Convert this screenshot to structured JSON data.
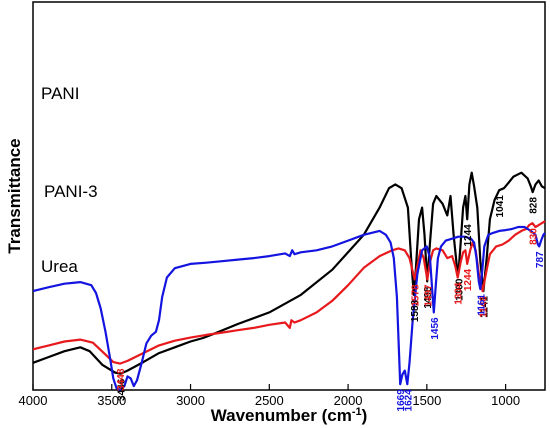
{
  "chart_data": {
    "type": "line",
    "xlabel": "Wavenumber (cm",
    "xlabel_sup": "-1",
    "xlabel_end": ")",
    "ylabel": "Transmittance",
    "xlim": [
      4000,
      750
    ],
    "x_reversed": true,
    "xticks": [
      4000,
      3500,
      3000,
      2500,
      2000,
      1500,
      1000
    ],
    "y_tick_labels": false,
    "grid": false,
    "series": [
      {
        "name": "PANI",
        "color": "#000000",
        "points": [
          [
            4000,
            0.93
          ],
          [
            3900,
            0.915
          ],
          [
            3800,
            0.9
          ],
          [
            3700,
            0.89
          ],
          [
            3640,
            0.9
          ],
          [
            3560,
            0.935
          ],
          [
            3480,
            0.955
          ],
          [
            3446,
            0.958
          ],
          [
            3400,
            0.95
          ],
          [
            3300,
            0.928
          ],
          [
            3200,
            0.905
          ],
          [
            3100,
            0.89
          ],
          [
            3000,
            0.875
          ],
          [
            2920,
            0.866
          ],
          [
            2850,
            0.855
          ],
          [
            2700,
            0.83
          ],
          [
            2500,
            0.8
          ],
          [
            2300,
            0.755
          ],
          [
            2100,
            0.69
          ],
          [
            1900,
            0.6
          ],
          [
            1800,
            0.53
          ],
          [
            1740,
            0.48
          ],
          [
            1700,
            0.47
          ],
          [
            1660,
            0.48
          ],
          [
            1620,
            0.53
          ],
          [
            1600,
            0.66
          ],
          [
            1583,
            0.755
          ],
          [
            1570,
            0.69
          ],
          [
            1550,
            0.56
          ],
          [
            1530,
            0.53
          ],
          [
            1515,
            0.6
          ],
          [
            1498,
            0.72
          ],
          [
            1480,
            0.62
          ],
          [
            1460,
            0.52
          ],
          [
            1440,
            0.5
          ],
          [
            1400,
            0.52
          ],
          [
            1370,
            0.55
          ],
          [
            1350,
            0.5
          ],
          [
            1330,
            0.6
          ],
          [
            1310,
            0.68
          ],
          [
            1300,
            0.7
          ],
          [
            1285,
            0.62
          ],
          [
            1270,
            0.53
          ],
          [
            1255,
            0.5
          ],
          [
            1244,
            0.56
          ],
          [
            1230,
            0.47
          ],
          [
            1215,
            0.44
          ],
          [
            1200,
            0.475
          ],
          [
            1180,
            0.53
          ],
          [
            1160,
            0.67
          ],
          [
            1141,
            0.745
          ],
          [
            1120,
            0.66
          ],
          [
            1100,
            0.56
          ],
          [
            1070,
            0.51
          ],
          [
            1041,
            0.485
          ],
          [
            1010,
            0.48
          ],
          [
            980,
            0.465
          ],
          [
            950,
            0.45
          ],
          [
            900,
            0.44
          ],
          [
            860,
            0.455
          ],
          [
            840,
            0.475
          ],
          [
            828,
            0.49
          ],
          [
            810,
            0.47
          ],
          [
            790,
            0.46
          ],
          [
            770,
            0.475
          ],
          [
            750,
            0.48
          ]
        ]
      },
      {
        "name": "PANI-3",
        "color": "#e8191c",
        "points": [
          [
            4000,
            0.895
          ],
          [
            3900,
            0.885
          ],
          [
            3800,
            0.875
          ],
          [
            3700,
            0.87
          ],
          [
            3620,
            0.878
          ],
          [
            3550,
            0.905
          ],
          [
            3490,
            0.928
          ],
          [
            3448,
            0.932
          ],
          [
            3400,
            0.925
          ],
          [
            3300,
            0.905
          ],
          [
            3200,
            0.885
          ],
          [
            3100,
            0.873
          ],
          [
            3000,
            0.865
          ],
          [
            2900,
            0.858
          ],
          [
            2800,
            0.852
          ],
          [
            2700,
            0.846
          ],
          [
            2600,
            0.84
          ],
          [
            2500,
            0.832
          ],
          [
            2400,
            0.826
          ],
          [
            2370,
            0.84
          ],
          [
            2360,
            0.82
          ],
          [
            2340,
            0.826
          ],
          [
            2300,
            0.82
          ],
          [
            2200,
            0.8
          ],
          [
            2100,
            0.77
          ],
          [
            2000,
            0.73
          ],
          [
            1900,
            0.685
          ],
          [
            1800,
            0.655
          ],
          [
            1720,
            0.64
          ],
          [
            1680,
            0.635
          ],
          [
            1640,
            0.64
          ],
          [
            1610,
            0.66
          ],
          [
            1578,
            0.715
          ],
          [
            1560,
            0.68
          ],
          [
            1540,
            0.64
          ],
          [
            1520,
            0.66
          ],
          [
            1497,
            0.715
          ],
          [
            1480,
            0.67
          ],
          [
            1460,
            0.64
          ],
          [
            1440,
            0.635
          ],
          [
            1400,
            0.64
          ],
          [
            1370,
            0.66
          ],
          [
            1340,
            0.655
          ],
          [
            1320,
            0.68
          ],
          [
            1304,
            0.71
          ],
          [
            1285,
            0.67
          ],
          [
            1270,
            0.645
          ],
          [
            1255,
            0.64
          ],
          [
            1244,
            0.675
          ],
          [
            1225,
            0.64
          ],
          [
            1210,
            0.62
          ],
          [
            1190,
            0.64
          ],
          [
            1170,
            0.7
          ],
          [
            1146,
            0.745
          ],
          [
            1120,
            0.69
          ],
          [
            1100,
            0.65
          ],
          [
            1060,
            0.63
          ],
          [
            1020,
            0.625
          ],
          [
            980,
            0.615
          ],
          [
            940,
            0.6
          ],
          [
            900,
            0.59
          ],
          [
            870,
            0.585
          ],
          [
            850,
            0.575
          ],
          [
            830,
            0.57
          ],
          [
            810,
            0.58
          ],
          [
            790,
            0.575
          ],
          [
            770,
            0.57
          ],
          [
            750,
            0.565
          ]
        ]
      },
      {
        "name": "Urea",
        "color": "#1414e0",
        "points": [
          [
            4000,
            0.745
          ],
          [
            3900,
            0.735
          ],
          [
            3800,
            0.726
          ],
          [
            3700,
            0.722
          ],
          [
            3630,
            0.73
          ],
          [
            3600,
            0.75
          ],
          [
            3570,
            0.79
          ],
          [
            3540,
            0.85
          ],
          [
            3510,
            0.92
          ],
          [
            3490,
            0.97
          ],
          [
            3470,
            0.995
          ],
          [
            3450,
            1.0
          ],
          [
            3420,
            0.99
          ],
          [
            3400,
            0.965
          ],
          [
            3380,
            0.97
          ],
          [
            3360,
            0.99
          ],
          [
            3340,
            0.975
          ],
          [
            3310,
            0.93
          ],
          [
            3280,
            0.88
          ],
          [
            3250,
            0.86
          ],
          [
            3220,
            0.85
          ],
          [
            3200,
            0.82
          ],
          [
            3180,
            0.76
          ],
          [
            3150,
            0.71
          ],
          [
            3100,
            0.686
          ],
          [
            3000,
            0.675
          ],
          [
            2900,
            0.672
          ],
          [
            2800,
            0.668
          ],
          [
            2700,
            0.664
          ],
          [
            2600,
            0.66
          ],
          [
            2500,
            0.655
          ],
          [
            2400,
            0.648
          ],
          [
            2370,
            0.655
          ],
          [
            2355,
            0.64
          ],
          [
            2340,
            0.65
          ],
          [
            2300,
            0.645
          ],
          [
            2200,
            0.64
          ],
          [
            2100,
            0.63
          ],
          [
            2000,
            0.615
          ],
          [
            1900,
            0.6
          ],
          [
            1800,
            0.59
          ],
          [
            1760,
            0.6
          ],
          [
            1730,
            0.62
          ],
          [
            1710,
            0.66
          ],
          [
            1690,
            0.76
          ],
          [
            1669,
            0.985
          ],
          [
            1655,
            0.96
          ],
          [
            1640,
            0.95
          ],
          [
            1624,
            0.985
          ],
          [
            1610,
            0.93
          ],
          [
            1590,
            0.82
          ],
          [
            1560,
            0.7
          ],
          [
            1530,
            0.64
          ],
          [
            1500,
            0.63
          ],
          [
            1480,
            0.66
          ],
          [
            1465,
            0.75
          ],
          [
            1456,
            0.8
          ],
          [
            1445,
            0.74
          ],
          [
            1430,
            0.66
          ],
          [
            1410,
            0.63
          ],
          [
            1380,
            0.615
          ],
          [
            1340,
            0.61
          ],
          [
            1300,
            0.605
          ],
          [
            1260,
            0.605
          ],
          [
            1220,
            0.61
          ],
          [
            1200,
            0.62
          ],
          [
            1185,
            0.66
          ],
          [
            1170,
            0.72
          ],
          [
            1161,
            0.74
          ],
          [
            1150,
            0.7
          ],
          [
            1135,
            0.63
          ],
          [
            1110,
            0.6
          ],
          [
            1080,
            0.595
          ],
          [
            1040,
            0.59
          ],
          [
            1000,
            0.588
          ],
          [
            960,
            0.585
          ],
          [
            920,
            0.58
          ],
          [
            880,
            0.58
          ],
          [
            840,
            0.59
          ],
          [
            810,
            0.6
          ],
          [
            795,
            0.625
          ],
          [
            787,
            0.63
          ],
          [
            775,
            0.615
          ],
          [
            760,
            0.6
          ],
          [
            750,
            0.595
          ]
        ]
      }
    ],
    "peak_labels": {
      "PANI": [
        "3446",
        "1583",
        "1498",
        "1300",
        "1244",
        "1141",
        "1041",
        "828"
      ],
      "PANI-3": [
        "3448",
        "1578",
        "1497",
        "1304",
        "1244",
        "1146",
        "830"
      ],
      "Urea": [
        "1669",
        "1624",
        "1456",
        "1161",
        "787"
      ]
    }
  }
}
